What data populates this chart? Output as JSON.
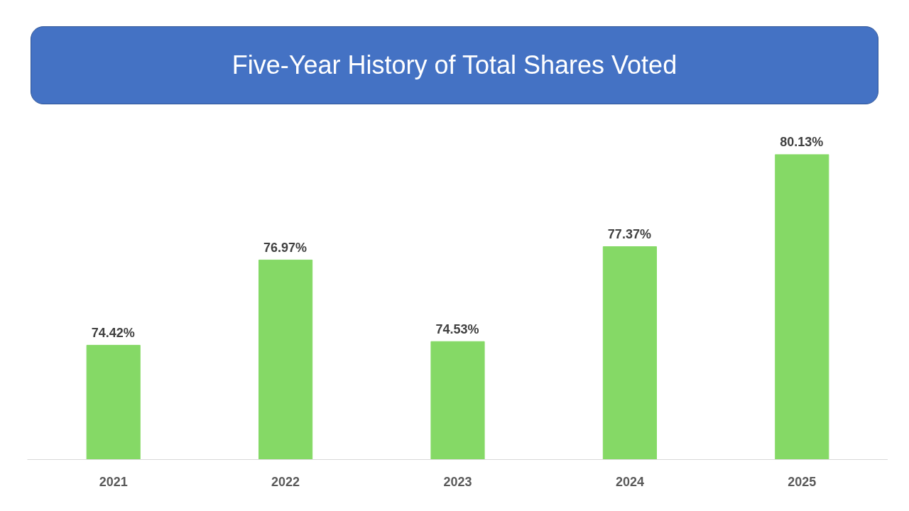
{
  "chart_data": {
    "type": "bar",
    "title": "Five-Year History of Total Shares Voted",
    "categories": [
      "2021",
      "2022",
      "2023",
      "2024",
      "2025"
    ],
    "values": [
      74.42,
      76.97,
      74.53,
      77.37,
      80.13
    ],
    "value_labels": [
      "74.42%",
      "76.97%",
      "74.53%",
      "77.37%",
      "80.13%"
    ],
    "color": "#85d966",
    "ylim": [
      71,
      80.13
    ],
    "tick_labels": "x",
    "grid": false
  }
}
